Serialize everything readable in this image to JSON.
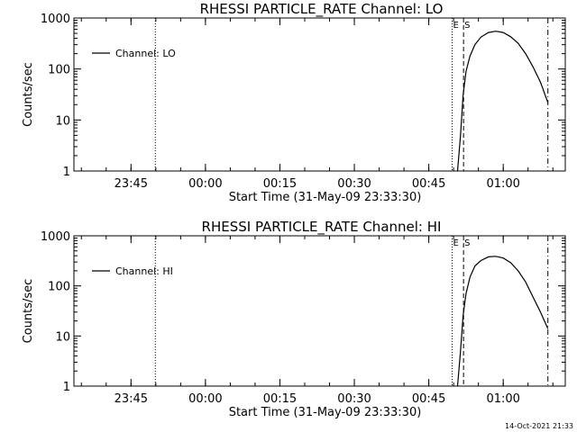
{
  "footer": {
    "timestamp": "14-Oct-2021 21:33"
  },
  "chart_data": [
    {
      "type": "line",
      "title": "RHESSI PARTICLE_RATE Channel: LO",
      "xlabel": "Start Time (31-May-09 23:33:30)",
      "ylabel": "Counts/sec",
      "x_ticks": [
        "23:45",
        "00:00",
        "00:15",
        "00:30",
        "00:45",
        "01:00"
      ],
      "x_tick_minutes": [
        11.5,
        26.5,
        41.5,
        56.5,
        71.5,
        86.5
      ],
      "xlim_minutes": [
        0,
        99
      ],
      "y_scale": "log",
      "ylim": [
        1,
        1000
      ],
      "y_ticks": [
        "1",
        "10",
        "100",
        "1000"
      ],
      "legend": {
        "entries": [
          "Channel: LO"
        ],
        "placement": "top-left"
      },
      "vertical_markers": [
        {
          "minute": 16.4,
          "style": "dotted",
          "label": ""
        },
        {
          "minute": 76.2,
          "style": "dotted",
          "label": "E"
        },
        {
          "minute": 78.5,
          "style": "dashed",
          "label": "S"
        },
        {
          "minute": 95.5,
          "style": "dashdot",
          "label": ""
        }
      ],
      "series": [
        {
          "name": "Channel: LO",
          "x": [
            77.3,
            77.9,
            78.4,
            79.0,
            79.8,
            80.8,
            82.0,
            83.5,
            85.0,
            86.5,
            88.0,
            89.5,
            91.0,
            92.5,
            94.0,
            95.5
          ],
          "y": [
            1,
            5,
            30,
            90,
            180,
            300,
            420,
            520,
            550,
            520,
            430,
            320,
            200,
            110,
            55,
            22
          ]
        }
      ]
    },
    {
      "type": "line",
      "title": "RHESSI PARTICLE_RATE Channel: HI",
      "xlabel": "Start Time (31-May-09 23:33:30)",
      "ylabel": "Counts/sec",
      "x_ticks": [
        "23:45",
        "00:00",
        "00:15",
        "00:30",
        "00:45",
        "01:00"
      ],
      "x_tick_minutes": [
        11.5,
        26.5,
        41.5,
        56.5,
        71.5,
        86.5
      ],
      "xlim_minutes": [
        0,
        99
      ],
      "y_scale": "log",
      "ylim": [
        1,
        1000
      ],
      "y_ticks": [
        "1",
        "10",
        "100",
        "1000"
      ],
      "legend": {
        "entries": [
          "Channel: HI"
        ],
        "placement": "top-left"
      },
      "vertical_markers": [
        {
          "minute": 16.4,
          "style": "dotted",
          "label": ""
        },
        {
          "minute": 76.2,
          "style": "dotted",
          "label": "E"
        },
        {
          "minute": 78.5,
          "style": "dashed",
          "label": "S"
        },
        {
          "minute": 95.5,
          "style": "dashdot",
          "label": ""
        }
      ],
      "series": [
        {
          "name": "Channel: HI",
          "x": [
            77.3,
            77.9,
            78.4,
            79.0,
            79.8,
            80.8,
            82.0,
            83.5,
            85.0,
            86.5,
            88.0,
            89.5,
            91.0,
            92.5,
            94.0,
            95.5
          ],
          "y": [
            1,
            5,
            25,
            70,
            150,
            250,
            320,
            380,
            390,
            360,
            290,
            200,
            120,
            60,
            30,
            14
          ]
        }
      ]
    }
  ]
}
